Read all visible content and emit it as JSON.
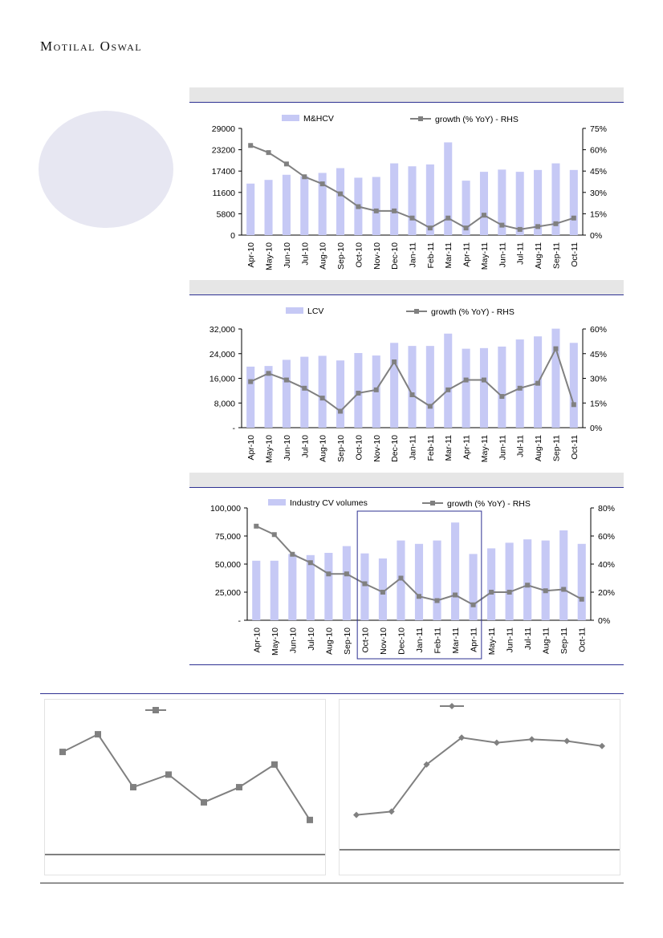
{
  "brand": {
    "name": "Motilal Oswal"
  },
  "colors": {
    "bar": "#c6c9f5",
    "line": "#808080",
    "accent": "#2e3192"
  },
  "chart_data": [
    {
      "type": "bar",
      "legend": {
        "bar": "M&HCV",
        "line": "growth (% YoY) - RHS"
      },
      "categories": [
        "Apr-10",
        "May-10",
        "Jun-10",
        "Jul-10",
        "Aug-10",
        "Sep-10",
        "Oct-10",
        "Nov-10",
        "Dec-10",
        "Jan-11",
        "Feb-11",
        "Mar-11",
        "Apr-11",
        "May-11",
        "Jun-11",
        "Jul-11",
        "Aug-11",
        "Sep-11",
        "Oct-11"
      ],
      "series": [
        {
          "name": "M&HCV",
          "axis": "left",
          "values": [
            14000,
            15000,
            16400,
            16000,
            16900,
            18200,
            15600,
            15800,
            19500,
            18700,
            19200,
            25200,
            14800,
            17200,
            17800,
            17200,
            17700,
            19500,
            17700
          ]
        },
        {
          "name": "growth (% YoY) - RHS",
          "axis": "right",
          "values": [
            63,
            58,
            50,
            41,
            36,
            29,
            20,
            17,
            17,
            12,
            5,
            12,
            5,
            14,
            7,
            4,
            6,
            8,
            12
          ]
        }
      ],
      "left_axis": {
        "min": 0,
        "max": 29000,
        "ticks": [
          "0",
          "5800",
          "11600",
          "17400",
          "23200",
          "29000"
        ]
      },
      "right_axis": {
        "min": 0,
        "max": 75,
        "ticks": [
          "0%",
          "15%",
          "30%",
          "45%",
          "60%",
          "75%"
        ]
      }
    },
    {
      "type": "bar",
      "legend": {
        "bar": "LCV",
        "line": "growth (% YoY) - RHS"
      },
      "categories": [
        "Apr-10",
        "May-10",
        "Jun-10",
        "Jul-10",
        "Aug-10",
        "Sep-10",
        "Oct-10",
        "Nov-10",
        "Dec-10",
        "Jan-11",
        "Feb-11",
        "Mar-11",
        "Apr-11",
        "May-11",
        "Jun-11",
        "Jul-11",
        "Aug-11",
        "Sep-11",
        "Oct-11"
      ],
      "series": [
        {
          "name": "LCV",
          "axis": "left",
          "values": [
            19800,
            20000,
            22000,
            23000,
            23300,
            21800,
            24200,
            23400,
            27500,
            26500,
            26500,
            30500,
            25600,
            25800,
            26300,
            28600,
            29600,
            32100,
            27500
          ]
        },
        {
          "name": "growth (% YoY) - RHS",
          "axis": "right",
          "values": [
            28,
            33,
            29,
            24,
            18,
            10,
            21,
            23,
            40,
            20,
            13,
            23,
            29,
            29,
            19,
            24,
            27,
            48,
            14
          ]
        }
      ],
      "left_axis": {
        "min": 0,
        "max": 32000,
        "ticks": [
          "-",
          "8,000",
          "16,000",
          "24,000",
          "32,000"
        ]
      },
      "right_axis": {
        "min": 0,
        "max": 60,
        "ticks": [
          "0%",
          "15%",
          "30%",
          "45%",
          "60%"
        ]
      }
    },
    {
      "type": "bar",
      "legend": {
        "bar": "Industry CV volumes",
        "line": "growth (% YoY) - RHS"
      },
      "categories": [
        "Apr-10",
        "May-10",
        "Jun-10",
        "Jul-10",
        "Aug-10",
        "Sep-10",
        "Oct-10",
        "Nov-10",
        "Dec-10",
        "Jan-11",
        "Feb-11",
        "Mar-11",
        "Apr-11",
        "May-11",
        "Jun-11",
        "Jul-11",
        "Aug-11",
        "Sep-11",
        "Oct-11"
      ],
      "series": [
        {
          "name": "Industry CV volumes",
          "axis": "left",
          "values": [
            53000,
            53000,
            59000,
            58000,
            60000,
            66000,
            59500,
            55000,
            71000,
            68000,
            71000,
            87000,
            59000,
            64000,
            69000,
            72000,
            71000,
            80000,
            68000
          ]
        },
        {
          "name": "growth (% YoY) - RHS",
          "axis": "right",
          "values": [
            67,
            61,
            47,
            41,
            33,
            33,
            26,
            20,
            30,
            17,
            14,
            18,
            11,
            20,
            20,
            25,
            21,
            22,
            15
          ]
        }
      ],
      "left_axis": {
        "min": 0,
        "max": 100000,
        "ticks": [
          "-",
          "25,000",
          "50,000",
          "75,000",
          "100,000"
        ]
      },
      "right_axis": {
        "min": 0,
        "max": 80,
        "ticks": [
          "0%",
          "20%",
          "40%",
          "60%",
          "80%"
        ]
      },
      "highlight": {
        "from": "Oct-10",
        "to": "Apr-11"
      }
    },
    {
      "type": "line",
      "marker": "square",
      "values": [
        70,
        77,
        56,
        61,
        50,
        56,
        65,
        43
      ],
      "ylim": [
        35,
        85
      ]
    },
    {
      "type": "line",
      "marker": "diamond",
      "values": [
        20,
        22,
        50,
        66,
        63,
        65,
        64,
        61
      ],
      "ylim": [
        5,
        80
      ]
    }
  ]
}
